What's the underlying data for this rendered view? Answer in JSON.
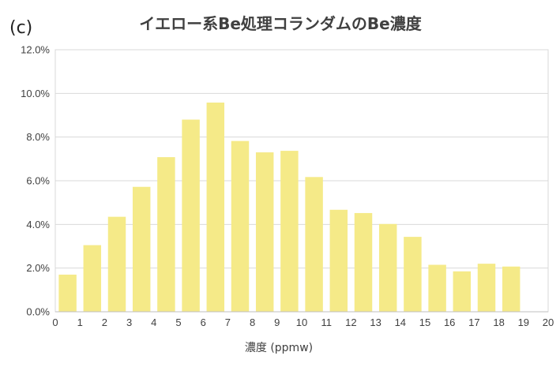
{
  "panel_label": "(c)",
  "chart_data": {
    "type": "bar",
    "title": "イエロー系Be処理コランダムのBe濃度",
    "xlabel": "濃度 (ppmw)",
    "ylabel": "",
    "categories": [
      "1",
      "2",
      "3",
      "4",
      "5",
      "6",
      "7",
      "8",
      "9",
      "10",
      "11",
      "12",
      "13",
      "14",
      "15",
      "16",
      "17",
      "18",
      "19",
      "20"
    ],
    "values": [
      1.7,
      3.05,
      4.35,
      5.72,
      7.08,
      8.8,
      9.58,
      7.82,
      7.3,
      7.37,
      6.17,
      4.67,
      4.52,
      4.02,
      3.43,
      2.15,
      1.85,
      2.2,
      2.07,
      null
    ],
    "x_ticks": [
      "0",
      "1",
      "2",
      "3",
      "4",
      "5",
      "6",
      "7",
      "8",
      "9",
      "10",
      "11",
      "12",
      "13",
      "14",
      "15",
      "16",
      "17",
      "18",
      "19",
      "20"
    ],
    "y_ticks": [
      "0.0%",
      "2.0%",
      "4.0%",
      "6.0%",
      "8.0%",
      "10.0%",
      "12.0%"
    ],
    "ylim": [
      0,
      12
    ],
    "y_unit": "%",
    "grid": true,
    "colors": {
      "bar": "#f5ea88",
      "grid": "#d9d9d9",
      "axis": "#bfbfbf",
      "text": "#404040"
    }
  }
}
